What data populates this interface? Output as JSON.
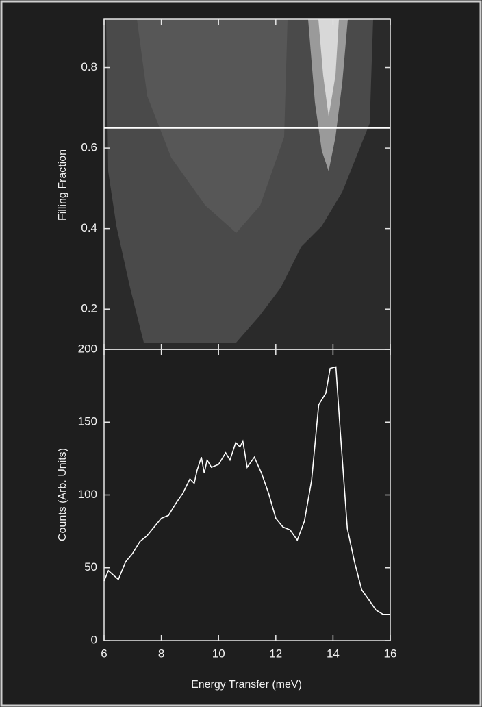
{
  "chart_data": [
    {
      "type": "map",
      "ylabel": "Filling Fraction",
      "xlim": [
        6,
        16
      ],
      "xticks": [
        6,
        8,
        10,
        12,
        14,
        16
      ],
      "ylim": [
        0.1,
        0.92
      ],
      "yticks": [
        0.2,
        0.4,
        0.6,
        0.8
      ],
      "cut": 0.65,
      "color": "#ffffff"
    },
    {
      "type": "line",
      "xlabel": "Energy Transfer (meV)",
      "ylabel": "Counts (Arb. Units)",
      "xlim": [
        6,
        16
      ],
      "xticks": [
        6,
        8,
        10,
        12,
        14,
        16
      ],
      "ylim": [
        0,
        200
      ],
      "yticks": [
        0,
        50,
        100,
        150,
        200
      ],
      "color": "#ffffff",
      "x": [
        6.0,
        6.15,
        6.5,
        6.75,
        7.0,
        7.25,
        7.5,
        7.75,
        8.0,
        8.25,
        8.5,
        8.75,
        9.0,
        9.15,
        9.25,
        9.4,
        9.5,
        9.6,
        9.75,
        10.0,
        10.25,
        10.4,
        10.6,
        10.75,
        10.85,
        11.0,
        11.25,
        11.5,
        11.75,
        12.0,
        12.25,
        12.5,
        12.75,
        13.0,
        13.25,
        13.5,
        13.75,
        13.9,
        14.1,
        14.25,
        14.5,
        14.75,
        15.0,
        15.25,
        15.5,
        15.75,
        16.0
      ],
      "values": [
        41,
        48,
        42,
        54,
        60,
        68,
        72,
        78,
        84,
        86,
        94,
        101,
        111,
        108,
        117,
        126,
        115,
        124,
        119,
        121,
        129,
        124,
        136,
        133,
        137,
        119,
        126,
        115,
        101,
        84,
        78,
        76,
        69,
        82,
        110,
        162,
        170,
        187,
        188,
        145,
        77,
        54,
        35,
        28,
        21,
        18,
        18
      ]
    }
  ]
}
